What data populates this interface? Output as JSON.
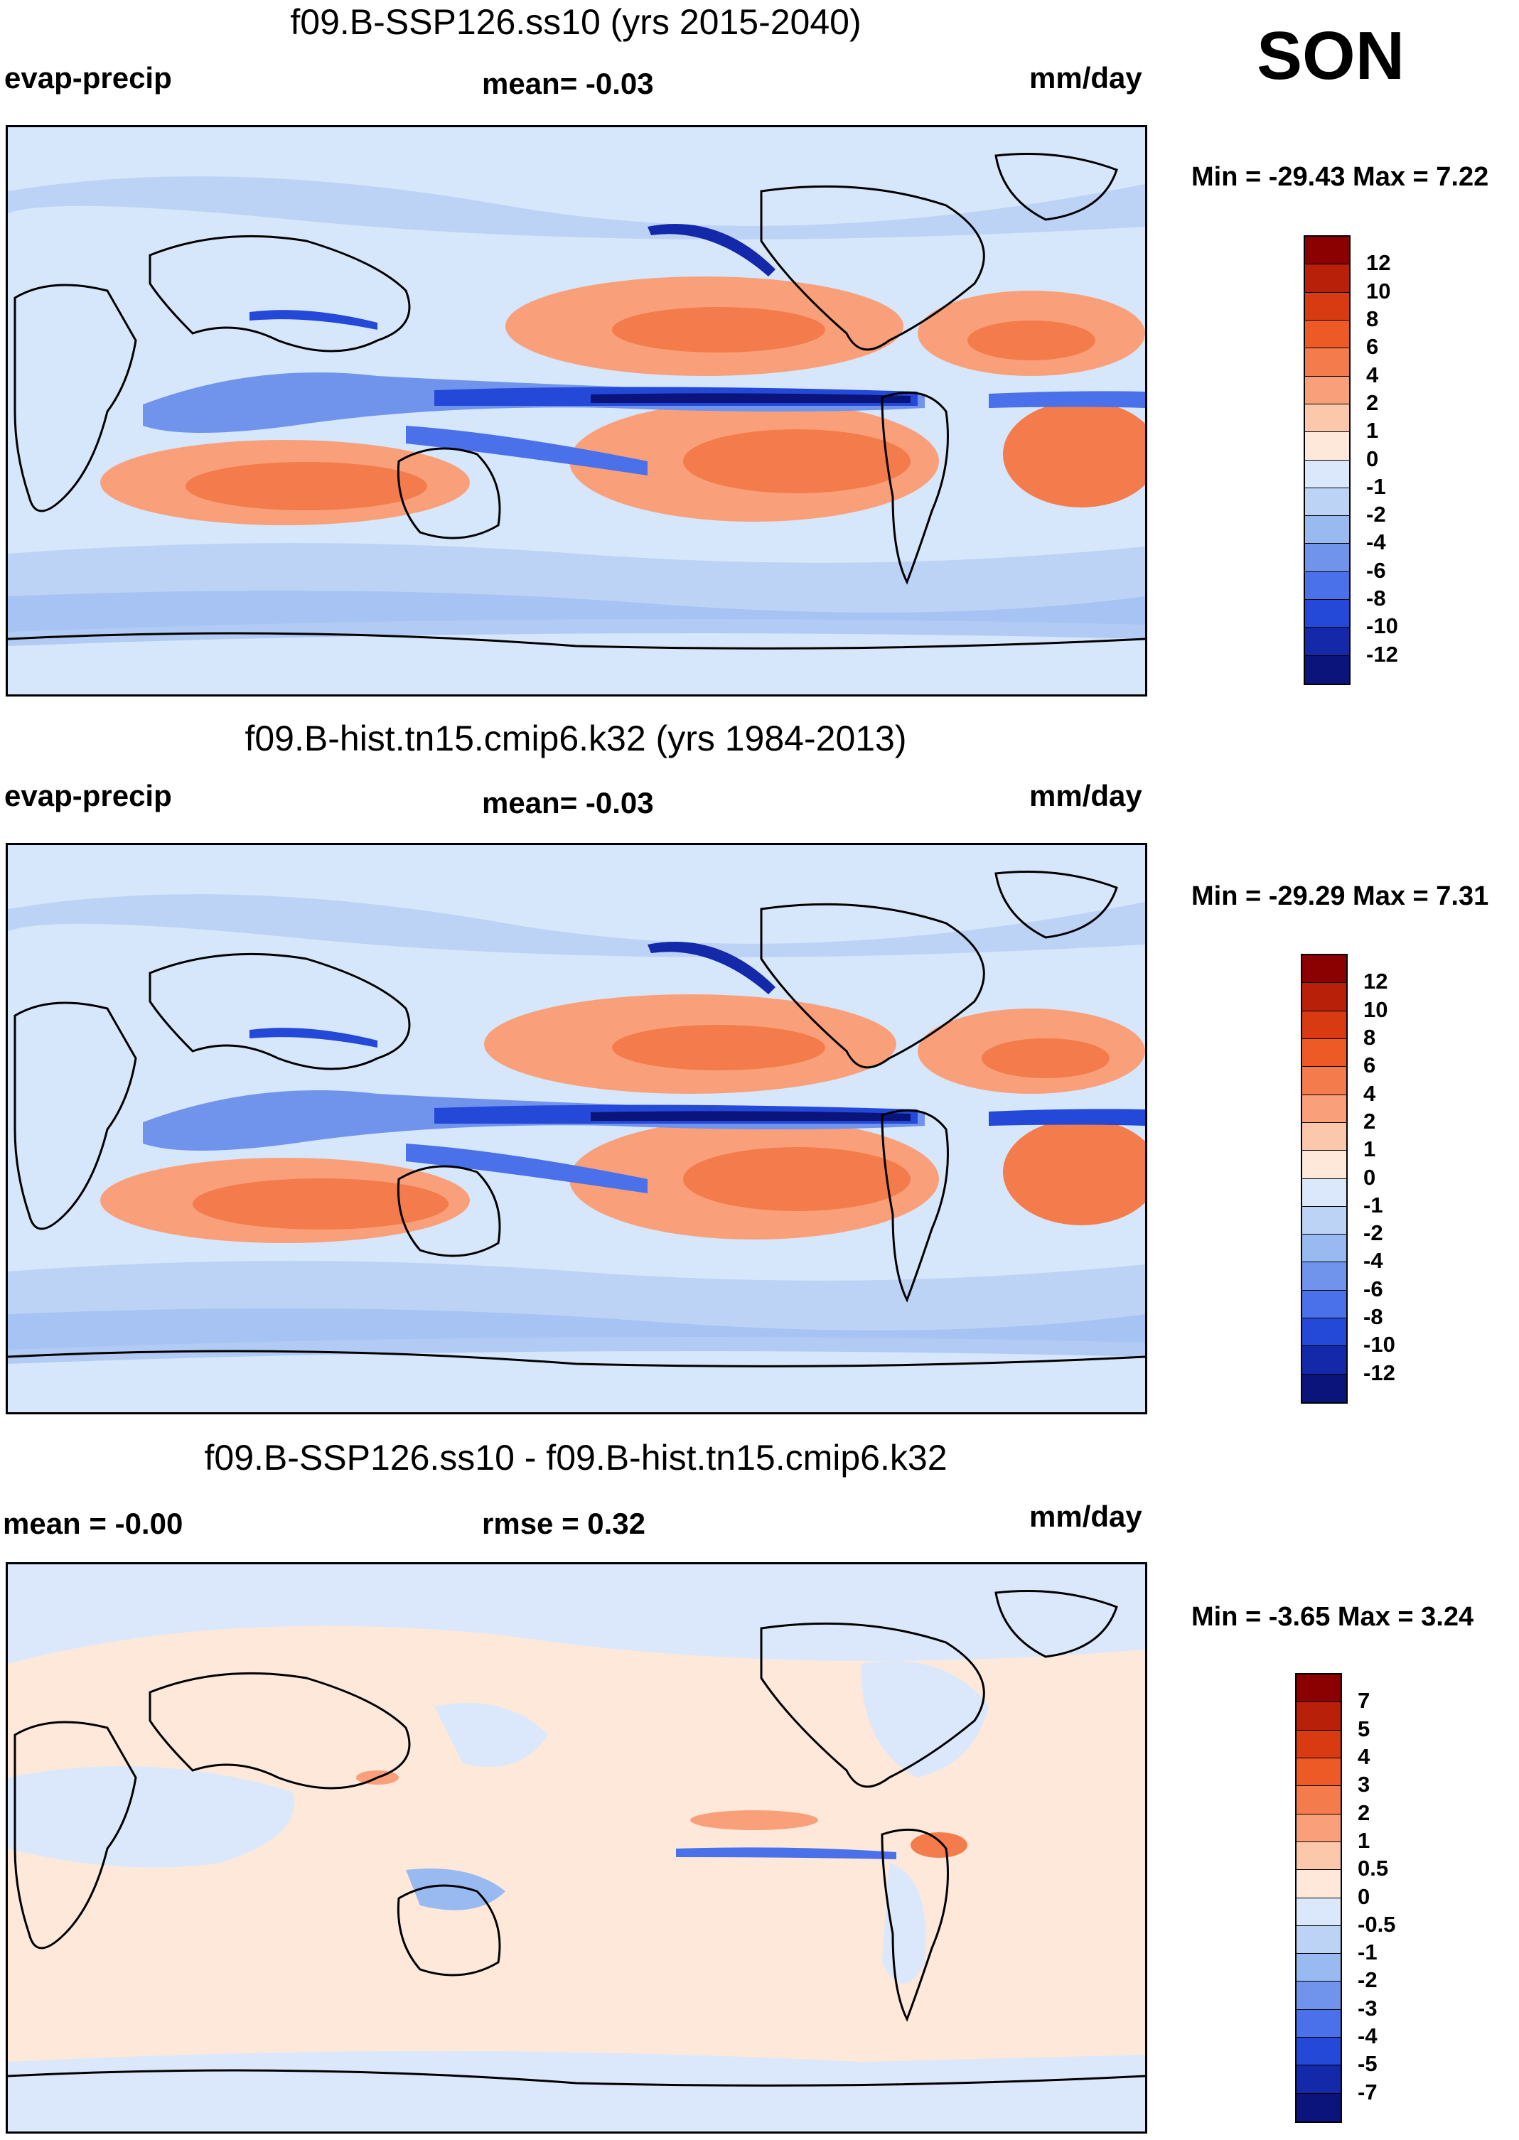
{
  "season": "SON",
  "panels": [
    {
      "title": "f09.B-SSP126.ss10 (yrs 2015-2040)",
      "left_label": "evap-precip",
      "center_label": "mean=  -0.03",
      "right_label": "mm/day",
      "minmax": "Min = -29.43 Max =   7.22",
      "colorbar": {
        "labels": [
          "12",
          "10",
          "8",
          "6",
          "4",
          "2",
          "1",
          "0",
          "-1",
          "-2",
          "-4",
          "-6",
          "-8",
          "-10",
          "-12"
        ],
        "colors": [
          "#8b0000",
          "#b8200a",
          "#d83a12",
          "#ee5a25",
          "#f47b4b",
          "#f9a07a",
          "#fcc8ac",
          "#fde8da",
          "#dbe8fb",
          "#bcd3f6",
          "#99b9f1",
          "#7094ec",
          "#4a70ea",
          "#2448d8",
          "#1428aa",
          "#0a147a"
        ]
      }
    },
    {
      "title": "f09.B-hist.tn15.cmip6.k32 (yrs 1984-2013)",
      "left_label": "evap-precip",
      "center_label": "mean=  -0.03",
      "right_label": "mm/day",
      "minmax": "Min = -29.29 Max =   7.31",
      "colorbar": {
        "labels": [
          "12",
          "10",
          "8",
          "6",
          "4",
          "2",
          "1",
          "0",
          "-1",
          "-2",
          "-4",
          "-6",
          "-8",
          "-10",
          "-12"
        ],
        "colors": [
          "#8b0000",
          "#b8200a",
          "#d83a12",
          "#ee5a25",
          "#f47b4b",
          "#f9a07a",
          "#fcc8ac",
          "#fde8da",
          "#dbe8fb",
          "#bcd3f6",
          "#99b9f1",
          "#7094ec",
          "#4a70ea",
          "#2448d8",
          "#1428aa",
          "#0a147a"
        ]
      }
    },
    {
      "title": "f09.B-SSP126.ss10 - f09.B-hist.tn15.cmip6.k32",
      "left_label": "mean =  -0.00",
      "center_label": "rmse =   0.32",
      "right_label": "mm/day",
      "minmax": "Min =  -3.65 Max =   3.24",
      "colorbar": {
        "labels": [
          "7",
          "5",
          "4",
          "3",
          "2",
          "1",
          "0.5",
          "0",
          "-0.5",
          "-1",
          "-2",
          "-3",
          "-4",
          "-5",
          "-7"
        ],
        "colors": [
          "#8b0000",
          "#b8200a",
          "#d83a12",
          "#ee5a25",
          "#f47b4b",
          "#f9a07a",
          "#fcc8ac",
          "#fde8da",
          "#dbe8fb",
          "#bcd3f6",
          "#99b9f1",
          "#7094ec",
          "#4a70ea",
          "#2448d8",
          "#1428aa",
          "#0a147a"
        ]
      }
    }
  ]
}
